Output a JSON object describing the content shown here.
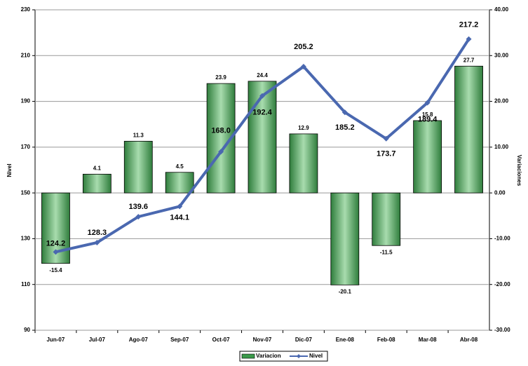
{
  "chart_data": {
    "type": "bar-line",
    "categories": [
      "Jun-07",
      "Jul-07",
      "Ago-07",
      "Sep-07",
      "Oct-07",
      "Nov-07",
      "Dic-07",
      "Ene-08",
      "Feb-08",
      "Mar-08",
      "Abr-08"
    ],
    "series": [
      {
        "name": "Variacion",
        "type": "bar",
        "axis": "y2",
        "color": "#3a9a4a",
        "values": [
          -15.4,
          4.1,
          11.3,
          4.5,
          23.9,
          24.4,
          12.9,
          -20.1,
          -11.5,
          15.8,
          27.7
        ],
        "value_label_colors": [
          "#000000",
          "#000000",
          "#000000",
          "#000000",
          "#000000",
          "#000000",
          "#000000",
          "#ff0000",
          "#ff0000",
          "#000000",
          "#000000"
        ]
      },
      {
        "name": "Nivel",
        "type": "line",
        "axis": "y",
        "color": "#4a68b0",
        "values": [
          124.2,
          128.3,
          139.6,
          144.1,
          168.0,
          192.4,
          205.2,
          185.2,
          173.7,
          189.4,
          217.2
        ],
        "value_labels": [
          "124.2",
          "128.3",
          "139.6",
          "144.1",
          "168.0",
          "192.4",
          "205.2",
          "185.2",
          "173.7",
          "189.4",
          "217.2"
        ]
      }
    ],
    "y_label": "Nivel",
    "y2_label": "Variaciones",
    "ylim": [
      90,
      230
    ],
    "yticks": [
      90,
      110,
      130,
      150,
      170,
      190,
      210,
      230
    ],
    "y2lim": [
      -30,
      40
    ],
    "y2ticks": [
      {
        "value": -30,
        "label": "-30.00"
      },
      {
        "value": -20,
        "label": "-20.00"
      },
      {
        "value": -10,
        "label": "-10.00"
      },
      {
        "value": 0,
        "label": "0.00"
      },
      {
        "value": 10,
        "label": "10.00"
      },
      {
        "value": 20,
        "label": "20.00"
      },
      {
        "value": 30,
        "label": "30.00"
      },
      {
        "value": 40,
        "label": "40.00"
      }
    ],
    "grid": true,
    "legend": "bottom"
  }
}
